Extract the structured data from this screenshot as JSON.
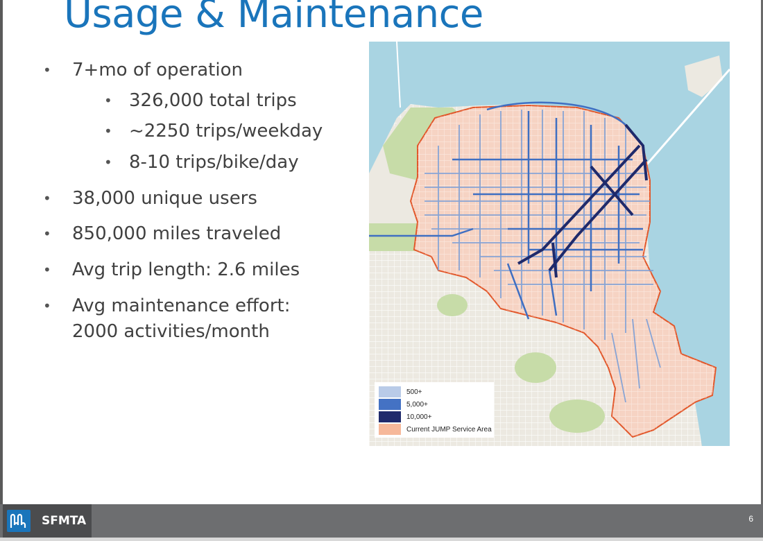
{
  "slide": {
    "title": "Usage & Maintenance",
    "bullets": [
      {
        "text": "7+mo of operation"
      },
      {
        "text": "326,000 total trips"
      },
      {
        "text": "~2250 trips/weekday"
      },
      {
        "text": "8-10 trips/bike/day"
      },
      {
        "text": "38,000 unique users"
      },
      {
        "text": "850,000 miles traveled"
      },
      {
        "text": "Avg trip length: 2.6 miles"
      },
      {
        "text": "Avg maintenance effort:"
      },
      {
        "text": "2000 activities/month"
      }
    ]
  },
  "map": {
    "legend": [
      {
        "label": "500+",
        "color": "#b9cbe8"
      },
      {
        "label": "5,000+",
        "color": "#4472c4"
      },
      {
        "label": "10,000+",
        "color": "#1f2a6b"
      },
      {
        "label": "Current JUMP Service Area",
        "color": "#f6b89a"
      }
    ],
    "colors": {
      "water": "#a9d4e2",
      "land": "#ece9e1",
      "park": "#c7dca8",
      "service_area": "#f6d3c3",
      "boundary": "#e2572a"
    }
  },
  "footer": {
    "org": "SFMTA",
    "page_number": "6"
  }
}
